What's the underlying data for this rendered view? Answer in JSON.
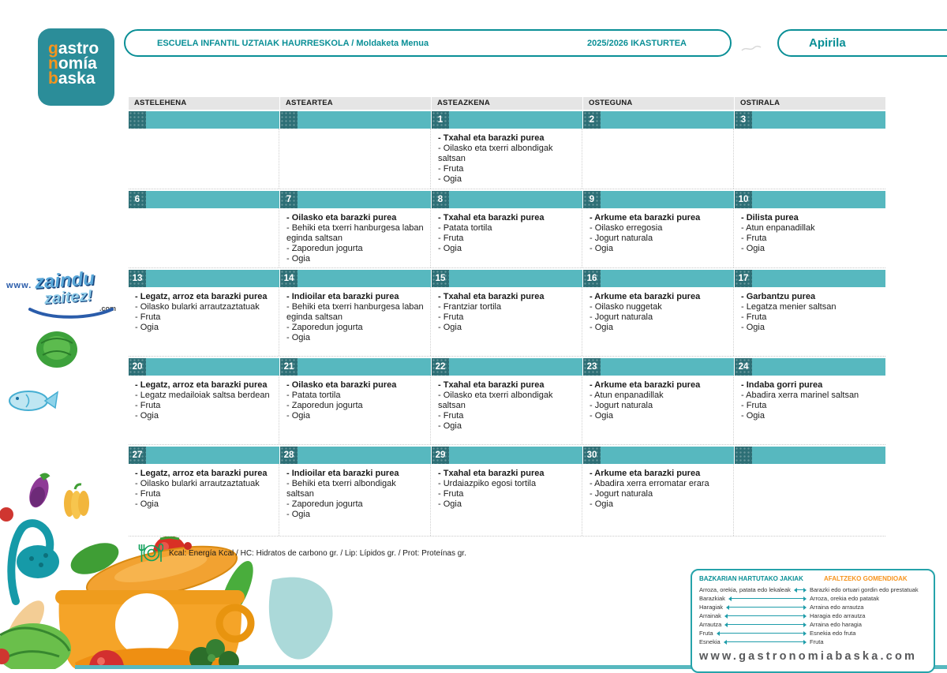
{
  "logo": {
    "l1a": "g",
    "l1b": "astro",
    "l2a": "n",
    "l2b": "omía",
    "l3a": "b",
    "l3b": "aska"
  },
  "header": {
    "title": "ESCUELA INFANTIL UZTAIAK HAURRESKOLA / Moldaketa Menua",
    "year": "2025/2026 IKASTURTEA",
    "month": "Apirila"
  },
  "colors": {
    "teal": "#57b8bf",
    "teal-dark": "#2d6f76",
    "teal-border": "#0a8f96",
    "teal-logo": "#2b8d99",
    "orange": "#f7941d"
  },
  "calendar": {
    "day_headers": [
      "ASTELEHENA",
      "ASTEARTEA",
      "ASTEAZKENA",
      "OSTEGUNA",
      "OSTIRALA"
    ],
    "weeks": [
      {
        "days": [
          {
            "num": "",
            "items": []
          },
          {
            "num": "",
            "items": []
          },
          {
            "num": "1",
            "items": [
              "Txahal eta barazki purea",
              "Oilasko eta txerri albondigak saltsan",
              "Fruta",
              "Ogia"
            ]
          },
          {
            "num": "2",
            "items": []
          },
          {
            "num": "3",
            "items": []
          }
        ]
      },
      {
        "days": [
          {
            "num": "6",
            "items": []
          },
          {
            "num": "7",
            "items": [
              "Oilasko eta barazki purea",
              "Behiki eta txerri hanburgesa laban eginda saltsan",
              "Zaporedun jogurta",
              "Ogia"
            ]
          },
          {
            "num": "8",
            "items": [
              "Txahal eta barazki purea",
              "Patata tortila",
              "Fruta",
              "Ogia"
            ]
          },
          {
            "num": "9",
            "items": [
              "Arkume eta barazki purea",
              "Oilasko erregosia",
              "Jogurt naturala",
              "Ogia"
            ]
          },
          {
            "num": "10",
            "items": [
              "Dilista purea",
              "Atun enpanadillak",
              "Fruta",
              "Ogia"
            ]
          }
        ]
      },
      {
        "days": [
          {
            "num": "13",
            "items": [
              "Legatz, arroz eta barazki purea",
              "Oilasko bularki arrautzaztatuak",
              "Fruta",
              "Ogia"
            ]
          },
          {
            "num": "14",
            "items": [
              "Indioilar eta barazki purea",
              "Behiki eta txerri hanburgesa laban eginda saltsan",
              "Zaporedun jogurta",
              "Ogia"
            ]
          },
          {
            "num": "15",
            "items": [
              "Txahal eta barazki purea",
              "Frantziar tortila",
              "Fruta",
              "Ogia"
            ]
          },
          {
            "num": "16",
            "items": [
              "Arkume eta barazki purea",
              "Oilasko nuggetak",
              "Jogurt naturala",
              "Ogia"
            ]
          },
          {
            "num": "17",
            "items": [
              "Garbantzu purea",
              "Legatza menier saltsan",
              "Fruta",
              "Ogia"
            ]
          }
        ]
      },
      {
        "days": [
          {
            "num": "20",
            "items": [
              "Legatz, arroz eta barazki purea",
              "Legatz medailoiak saltsa berdean",
              "Fruta",
              "Ogia"
            ]
          },
          {
            "num": "21",
            "items": [
              "Oilasko eta barazki purea",
              "Patata tortila",
              "Zaporedun jogurta",
              "Ogia"
            ]
          },
          {
            "num": "22",
            "items": [
              "Txahal eta barazki purea",
              "Oilasko eta txerri albondigak saltsan",
              "Fruta",
              "Ogia"
            ]
          },
          {
            "num": "23",
            "items": [
              "Arkume eta barazki purea",
              "Atun enpanadillak",
              "Jogurt naturala",
              "Ogia"
            ]
          },
          {
            "num": "24",
            "items": [
              "Indaba gorri purea",
              "Abadira xerra marinel saltsan",
              "Fruta",
              "Ogia"
            ]
          }
        ]
      },
      {
        "days": [
          {
            "num": "27",
            "items": [
              "Legatz, arroz eta barazki purea",
              "Oilasko bularki arrautzaztatuak",
              "Fruta",
              "Ogia"
            ]
          },
          {
            "num": "28",
            "items": [
              "Indioilar eta barazki purea",
              "Behiki eta txerri albondigak saltsan",
              "Zaporedun jogurta",
              "Ogia"
            ]
          },
          {
            "num": "29",
            "items": [
              "Txahal eta barazki purea",
              "Urdaiazpiko egosi tortila",
              "Fruta",
              "Ogia"
            ]
          },
          {
            "num": "30",
            "items": [
              "Arkume eta barazki purea",
              "Abadira xerra erromatar erara",
              "Jogurt naturala",
              "Ogia"
            ]
          },
          {
            "num": "",
            "items": []
          }
        ]
      }
    ]
  },
  "legend": {
    "text": "Kcal: Energía Kcal / HC: Hidratos de carbono gr. / Lip: Lípidos gr. / Prot: Proteínas gr."
  },
  "info_box": {
    "left_title": "BAZKARIAN HARTUTAKO JAKIAK",
    "right_title": "AFALTZEKO GOMENDIOAK",
    "rows": [
      {
        "left": "Arroza, orekia, patata edo lekaleak",
        "right": "Barazki edo ortuari gordin edo prestatuak"
      },
      {
        "left": "Barazkiak",
        "right": "Arroza, orekia edo patatak"
      },
      {
        "left": "Haragiak",
        "right": "Arraina edo arrautza"
      },
      {
        "left": "Arrainak",
        "right": "Haragia edo arrautza"
      },
      {
        "left": "Arrautza",
        "right": "Arraina edo haragia"
      },
      {
        "left": "Fruta",
        "right": "Esnekia edo fruta"
      },
      {
        "left": "Esnekia",
        "right": "Fruta"
      }
    ],
    "website": "www.gastronomiabaska.com"
  },
  "side_logo": {
    "www": "www.",
    "zaindu": "zaindu",
    "zaitez": "zaitez!",
    "com": ".com"
  }
}
